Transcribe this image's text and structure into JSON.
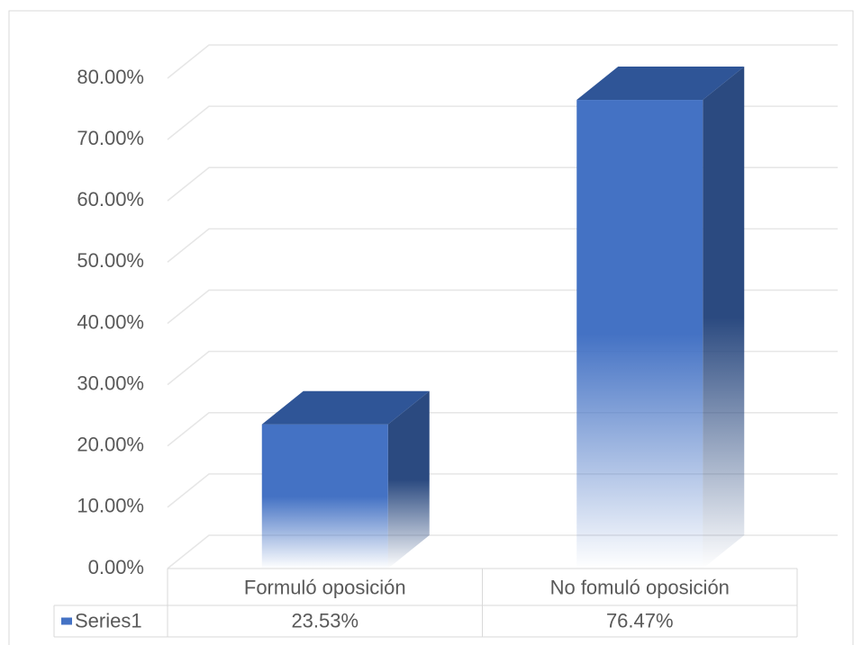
{
  "chart_data": {
    "type": "bar3d",
    "categories": [
      "Formuló oposición",
      "No fomuló oposición"
    ],
    "series": [
      {
        "name": "Series1",
        "color": "#4472c4",
        "values": [
          23.53,
          76.47
        ],
        "value_labels": [
          "23.53%",
          "76.47%"
        ]
      }
    ],
    "ylim": [
      0,
      80
    ],
    "yticks": [
      {
        "value": 0,
        "label": "0.00%"
      },
      {
        "value": 10,
        "label": "10.00%"
      },
      {
        "value": 20,
        "label": "20.00%"
      },
      {
        "value": 30,
        "label": "30.00%"
      },
      {
        "value": 40,
        "label": "40.00%"
      },
      {
        "value": 50,
        "label": "50.00%"
      },
      {
        "value": 60,
        "label": "60.00%"
      },
      {
        "value": 70,
        "label": "70.00%"
      },
      {
        "value": 80,
        "label": "80.00%"
      }
    ],
    "grid": true
  }
}
